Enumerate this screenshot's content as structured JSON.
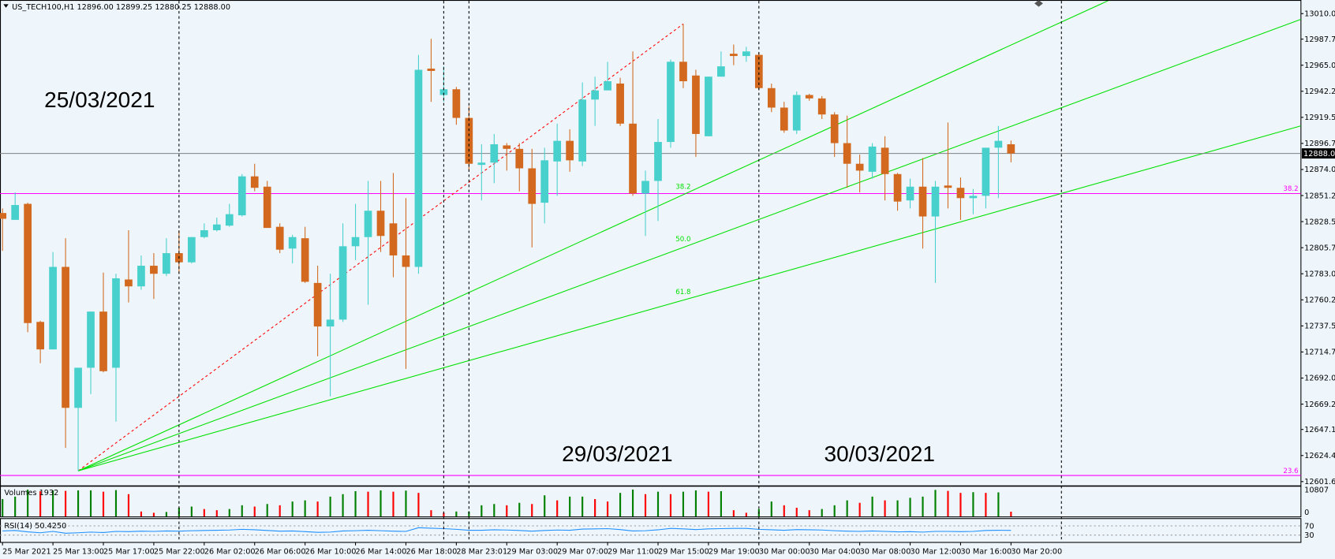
{
  "chart_data": {
    "type": "candlestick",
    "symbol": "US_TECH100,H1",
    "header_labels": [
      "12896.00",
      "12899.25",
      "12880.25",
      "12888.00"
    ],
    "annotations": [
      "25/03/2021",
      "29/03/2021",
      "30/03/2021"
    ],
    "up_color": "#48d1cc",
    "down_color": "#d2691e",
    "open": [
      12836,
      12830,
      12844,
      12741,
      12717,
      12789,
      12666,
      12701,
      12750,
      12701,
      12778,
      12772,
      12790,
      12783,
      12801,
      12793,
      12815,
      12821,
      12825,
      12834,
      12868,
      12859,
      12824,
      12805,
      12814,
      12775,
      12737,
      12743,
      12807,
      12815,
      12838,
      12827,
      12799,
      12789,
      12962,
      12939,
      12944,
      12919,
      12878,
      12880,
      12895,
      12892,
      12875,
      12845,
      12881,
      12899,
      12881,
      12935,
      12943,
      12949,
      12914,
      12853,
      12864,
      12898,
      12968,
      12956,
      12903,
      12955,
      12975,
      12973,
      12974,
      12945,
      12928,
      12908,
      12939,
      12936,
      12922,
      12897,
      12879,
      12872,
      12893,
      12870,
      12847,
      12859,
      12833,
      12860,
      12858,
      12849,
      12851,
      12893,
      12896
    ],
    "high": [
      12840,
      12854,
      12845,
      12742,
      12802,
      12814,
      12701,
      12750,
      12784,
      12783,
      12821,
      12799,
      12801,
      12814,
      12821,
      12815,
      12827,
      12832,
      12844,
      12870,
      12879,
      12864,
      12827,
      12817,
      12824,
      12790,
      12783,
      12827,
      12844,
      12864,
      12864,
      12871,
      12849,
      12974,
      12988,
      12964,
      12946,
      12929,
      12896,
      12905,
      12897,
      12897,
      12892,
      12893,
      12914,
      12909,
      12950,
      12955,
      12968,
      12954,
      12977,
      12873,
      12918,
      12970,
      13001,
      12961,
      12955,
      12977,
      12983,
      12981,
      12976,
      12949,
      12933,
      12942,
      12940,
      12938,
      12924,
      12921,
      12887,
      12897,
      12903,
      12871,
      12866,
      12884,
      12864,
      12915,
      12867,
      12857,
      12893,
      12912,
      12899.25
    ],
    "low": [
      12803,
      12830,
      12732,
      12705,
      12717,
      12631,
      12611,
      12678,
      12697,
      12654,
      12758,
      12769,
      12761,
      12781,
      12783,
      12792,
      12814,
      12820,
      12824,
      12833,
      12855,
      12823,
      12801,
      12792,
      12775,
      12711,
      12676,
      12741,
      12795,
      12756,
      12802,
      12780,
      12700,
      12783,
      12933,
      12933,
      12913,
      12873,
      12847,
      12862,
      12873,
      12855,
      12806,
      12827,
      12851,
      12872,
      12877,
      12912,
      12945,
      12912,
      12851,
      12816,
      12829,
      12893,
      12945,
      12885,
      12903,
      12955,
      12965,
      12968,
      12943,
      12924,
      12906,
      12905,
      12934,
      12918,
      12885,
      12858,
      12854,
      12866,
      12847,
      12838,
      12840,
      12805,
      12775,
      12840,
      12830,
      12835,
      12840,
      12849,
      12880.25
    ],
    "close": [
      12831,
      12843,
      12740,
      12717,
      12789,
      12666,
      12701,
      12750,
      12698,
      12779,
      12772,
      12790,
      12783,
      12801,
      12793,
      12815,
      12821,
      12826,
      12835,
      12868,
      12858,
      12823,
      12804,
      12815,
      12776,
      12737,
      12743,
      12807,
      12815,
      12838,
      12816,
      12799,
      12789,
      12961,
      12960,
      12944,
      12919,
      12879,
      12880,
      12896,
      12892,
      12875,
      12844,
      12882,
      12899,
      12882,
      12935,
      12943,
      12951,
      12914,
      12853,
      12864,
      12898,
      12968,
      12951,
      12905,
      12955,
      12964,
      12973,
      12977,
      12945,
      12928,
      12908,
      12939,
      12936,
      12922,
      12897,
      12879,
      12873,
      12894,
      12870,
      12846,
      12859,
      12833,
      12859,
      12858,
      12849,
      12851,
      12893,
      12899,
      12888
    ],
    "xlim": [
      -0.2,
      103
    ],
    "ylim": [
      12598.7,
      13020.4
    ],
    "yticks": [
      {
        "value": 13010,
        "label": "13010.00"
      },
      {
        "value": 12987.75,
        "label": "12987.75"
      },
      {
        "value": 12965,
        "label": "12965.00"
      },
      {
        "value": 12942.25,
        "label": "12942.25"
      },
      {
        "value": 12919.5,
        "label": "12919.50"
      },
      {
        "value": 12896.75,
        "label": "12896.75"
      },
      {
        "value": 12874,
        "label": "12874.00"
      },
      {
        "value": 12851.25,
        "label": "12851.25"
      },
      {
        "value": 12828.5,
        "label": "12828.50"
      },
      {
        "value": 12805.75,
        "label": "12805.75"
      },
      {
        "value": 12783,
        "label": "12783.00"
      },
      {
        "value": 12760.25,
        "label": "12760.25"
      },
      {
        "value": 12737.5,
        "label": "12737.50"
      },
      {
        "value": 12714.75,
        "label": "12714.75"
      },
      {
        "value": 12692,
        "label": "12692.00"
      },
      {
        "value": 12669.25,
        "label": "12669.25"
      },
      {
        "value": 12647.15,
        "label": "12647.15"
      },
      {
        "value": 12624.4,
        "label": "12624.40"
      },
      {
        "value": 12601.65,
        "label": "12601.65"
      }
    ],
    "xticks": [
      {
        "value": 0,
        "label": "25 Mar 2021"
      },
      {
        "value": 4,
        "label": "25 Mar 13:00"
      },
      {
        "value": 8,
        "label": "25 Mar 17:00"
      },
      {
        "value": 12,
        "label": "25 Mar 22:00"
      },
      {
        "value": 16,
        "label": "26 Mar 02:00"
      },
      {
        "value": 20,
        "label": "26 Mar 06:00"
      },
      {
        "value": 24,
        "label": "26 Mar 10:00"
      },
      {
        "value": 28,
        "label": "26 Mar 14:00"
      },
      {
        "value": 32,
        "label": "26 Mar 18:00"
      },
      {
        "value": 36,
        "label": "28 Mar 23:01"
      },
      {
        "value": 40,
        "label": "29 Mar 03:00"
      },
      {
        "value": 44,
        "label": "29 Mar 07:00"
      },
      {
        "value": 48,
        "label": "29 Mar 11:00"
      },
      {
        "value": 52,
        "label": "29 Mar 15:00"
      },
      {
        "value": 56,
        "label": "29 Mar 19:00"
      },
      {
        "value": 60,
        "label": "30 Mar 00:00"
      },
      {
        "value": 64,
        "label": "30 Mar 04:00"
      },
      {
        "value": 68,
        "label": "30 Mar 08:00"
      },
      {
        "value": 72,
        "label": "30 Mar 12:00"
      },
      {
        "value": 76,
        "label": "30 Mar 16:00"
      },
      {
        "value": 80,
        "label": "30 Mar 20:00"
      }
    ],
    "price_line": {
      "value": 12888,
      "label": "12888.00",
      "color": "#808080"
    },
    "separators": [
      14,
      35,
      37,
      60,
      84
    ],
    "horizontal_lines": {
      "color": "#ff00ff",
      "lines": [
        {
          "price": 12853,
          "label": "38.2"
        },
        {
          "price": 12607,
          "label": "23.6"
        }
      ]
    },
    "fibo_fan": {
      "from": {
        "index": 6,
        "price": 12611
      },
      "to": {
        "index": 54,
        "price": 13001
      },
      "trend_color": "#ff0000",
      "color": "#00e000",
      "levels": [
        {
          "value": 38.2,
          "label": "38.2"
        },
        {
          "value": 50,
          "label": "50.0"
        },
        {
          "value": 61.8,
          "label": "61.8"
        }
      ]
    },
    "volume": {
      "name": "Volumes",
      "up_color": "#008000",
      "down_color": "#ff0000",
      "ylim": [
        0,
        12000
      ],
      "yticks": [
        10807,
        0
      ],
      "values": [
        7000,
        8000,
        10800,
        10200,
        10500,
        10300,
        10500,
        10500,
        10000,
        10600,
        9000,
        2000,
        1500,
        1800,
        3500,
        4000,
        3000,
        2500,
        3000,
        4500,
        4000,
        5000,
        4500,
        6000,
        6500,
        6000,
        8000,
        9000,
        10200,
        10000,
        10500,
        10000,
        10400,
        9500,
        2500,
        1500,
        2000,
        2000,
        4500,
        5000,
        4500,
        5500,
        5000,
        8500,
        6500,
        8000,
        8000,
        7000,
        6000,
        9500,
        10800,
        9000,
        10000,
        9000,
        10000,
        10500,
        10000,
        10200,
        2500,
        1500,
        3000,
        6000,
        4500,
        3500,
        2500,
        3000,
        4500,
        6500,
        5500,
        8000,
        6500,
        6500,
        7500,
        8000,
        10700,
        10300,
        9500,
        9800,
        9500,
        9700,
        1932
      ]
    },
    "rsi": {
      "name": "RSI(14)",
      "current_label": "50.4250",
      "color": "#1e90ff",
      "ylim": [
        0,
        100
      ],
      "yticks": [
        70,
        30
      ],
      "values": [
        48,
        50,
        44,
        40,
        46,
        38,
        40,
        43,
        41,
        46,
        45,
        47,
        46,
        48,
        47,
        49,
        50,
        51,
        52,
        55,
        53,
        50,
        47,
        48,
        45,
        42,
        43,
        48,
        49,
        51,
        49,
        47,
        46,
        62,
        60,
        58,
        55,
        51,
        51,
        53,
        52,
        50,
        47,
        50,
        52,
        51,
        56,
        57,
        58,
        54,
        48,
        49,
        53,
        59,
        57,
        54,
        57,
        58,
        59,
        59,
        55,
        53,
        51,
        54,
        53,
        52,
        49,
        47,
        46,
        48,
        46,
        44,
        45,
        43,
        46,
        46,
        45,
        46,
        50,
        51,
        50.425
      ]
    }
  }
}
